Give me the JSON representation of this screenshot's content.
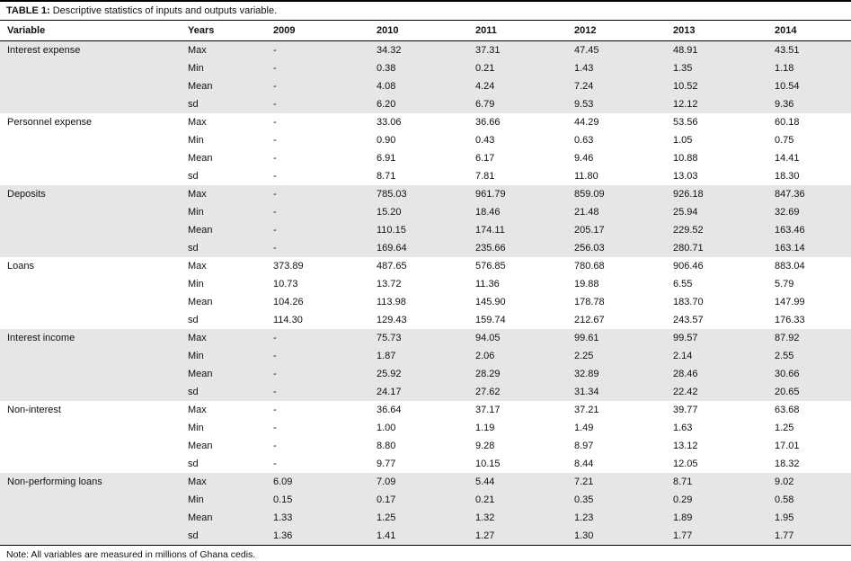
{
  "title": {
    "label": "TABLE 1:",
    "text": "Descriptive statistics of inputs and outputs variable."
  },
  "columns": [
    "Variable",
    "Years",
    "2009",
    "2010",
    "2011",
    "2012",
    "2013",
    "2014"
  ],
  "groups": [
    {
      "variable": "Interest expense",
      "shaded": true,
      "rows": [
        {
          "stat": "Max",
          "values": [
            "-",
            "34.32",
            "37.31",
            "47.45",
            "48.91",
            "43.51"
          ]
        },
        {
          "stat": "Min",
          "values": [
            "-",
            "0.38",
            "0.21",
            "1.43",
            "1.35",
            "1.18"
          ]
        },
        {
          "stat": "Mean",
          "values": [
            "-",
            "4.08",
            "4.24",
            "7.24",
            "10.52",
            "10.54"
          ]
        },
        {
          "stat": "sd",
          "values": [
            "-",
            "6.20",
            "6.79",
            "9.53",
            "12.12",
            "9.36"
          ]
        }
      ]
    },
    {
      "variable": "Personnel expense",
      "shaded": false,
      "rows": [
        {
          "stat": "Max",
          "values": [
            "-",
            "33.06",
            "36.66",
            "44.29",
            "53.56",
            "60.18"
          ]
        },
        {
          "stat": "Min",
          "values": [
            "-",
            "0.90",
            "0.43",
            "0.63",
            "1.05",
            "0.75"
          ]
        },
        {
          "stat": "Mean",
          "values": [
            "-",
            "6.91",
            "6.17",
            "9.46",
            "10.88",
            "14.41"
          ]
        },
        {
          "stat": "sd",
          "values": [
            "-",
            "8.71",
            "7.81",
            "11.80",
            "13.03",
            "18.30"
          ]
        }
      ]
    },
    {
      "variable": "Deposits",
      "shaded": true,
      "rows": [
        {
          "stat": "Max",
          "values": [
            "-",
            "785.03",
            "961.79",
            "859.09",
            "926.18",
            "847.36"
          ]
        },
        {
          "stat": "Min",
          "values": [
            "-",
            "15.20",
            "18.46",
            "21.48",
            "25.94",
            "32.69"
          ]
        },
        {
          "stat": "Mean",
          "values": [
            "-",
            "110.15",
            "174.11",
            "205.17",
            "229.52",
            "163.46"
          ]
        },
        {
          "stat": "sd",
          "values": [
            "-",
            "169.64",
            "235.66",
            "256.03",
            "280.71",
            "163.14"
          ]
        }
      ]
    },
    {
      "variable": "Loans",
      "shaded": false,
      "rows": [
        {
          "stat": "Max",
          "values": [
            "373.89",
            "487.65",
            "576.85",
            "780.68",
            "906.46",
            "883.04"
          ]
        },
        {
          "stat": "Min",
          "values": [
            "10.73",
            "13.72",
            "11.36",
            "19.88",
            "6.55",
            "5.79"
          ]
        },
        {
          "stat": "Mean",
          "values": [
            "104.26",
            "113.98",
            "145.90",
            "178.78",
            "183.70",
            "147.99"
          ]
        },
        {
          "stat": "sd",
          "values": [
            "114.30",
            "129.43",
            "159.74",
            "212.67",
            "243.57",
            "176.33"
          ]
        }
      ]
    },
    {
      "variable": "Interest income",
      "shaded": true,
      "rows": [
        {
          "stat": "Max",
          "values": [
            "-",
            "75.73",
            "94.05",
            "99.61",
            "99.57",
            "87.92"
          ]
        },
        {
          "stat": "Min",
          "values": [
            "-",
            "1.87",
            "2.06",
            "2.25",
            "2.14",
            "2.55"
          ]
        },
        {
          "stat": "Mean",
          "values": [
            "-",
            "25.92",
            "28.29",
            "32.89",
            "28.46",
            "30.66"
          ]
        },
        {
          "stat": "sd",
          "values": [
            "-",
            "24.17",
            "27.62",
            "31.34",
            "22.42",
            "20.65"
          ]
        }
      ]
    },
    {
      "variable": "Non-interest",
      "shaded": false,
      "rows": [
        {
          "stat": "Max",
          "values": [
            "-",
            "36.64",
            "37.17",
            "37.21",
            "39.77",
            "63.68"
          ]
        },
        {
          "stat": "Min",
          "values": [
            "-",
            "1.00",
            "1.19",
            "1.49",
            "1.63",
            "1.25"
          ]
        },
        {
          "stat": "Mean",
          "values": [
            "-",
            "8.80",
            "9.28",
            "8.97",
            "13.12",
            "17.01"
          ]
        },
        {
          "stat": "sd",
          "values": [
            "-",
            "9.77",
            "10.15",
            "8.44",
            "12.05",
            "18.32"
          ]
        }
      ]
    },
    {
      "variable": "Non-performing loans",
      "shaded": true,
      "rows": [
        {
          "stat": "Max",
          "values": [
            "6.09",
            "7.09",
            "5.44",
            "7.21",
            "8.71",
            "9.02"
          ]
        },
        {
          "stat": "Min",
          "values": [
            "0.15",
            "0.17",
            "0.21",
            "0.35",
            "0.29",
            "0.58"
          ]
        },
        {
          "stat": "Mean",
          "values": [
            "1.33",
            "1.25",
            "1.32",
            "1.23",
            "1.89",
            "1.95"
          ]
        },
        {
          "stat": "sd",
          "values": [
            "1.36",
            "1.41",
            "1.27",
            "1.30",
            "1.77",
            "1.77"
          ]
        }
      ]
    }
  ],
  "note": "Note: All variables are measured in millions of Ghana cedis."
}
